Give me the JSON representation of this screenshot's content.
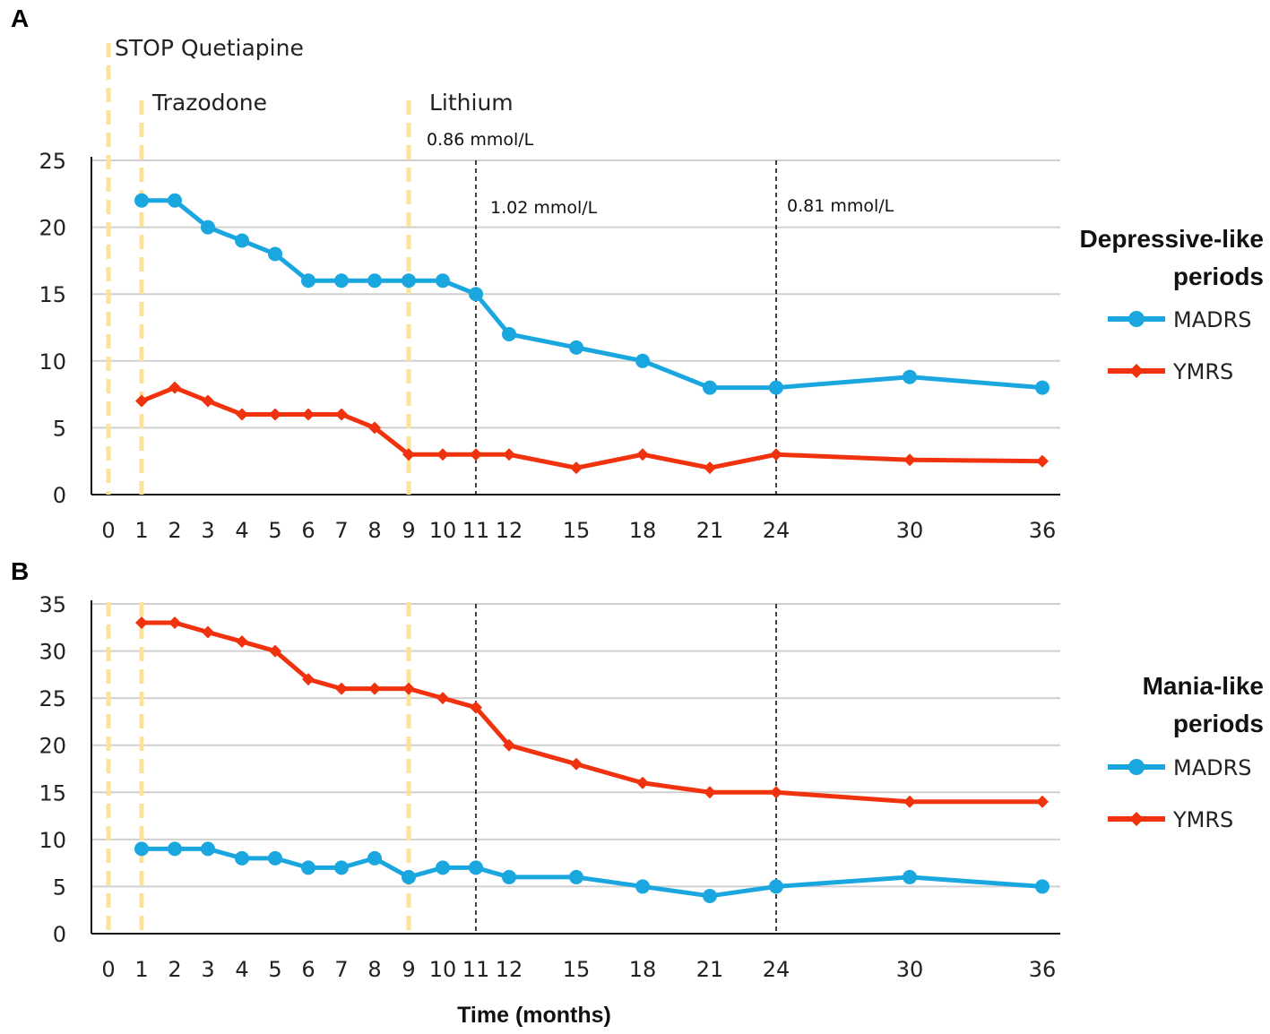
{
  "figure": {
    "x_positions": [
      "0",
      "1",
      "2",
      "3",
      "4",
      "5",
      "6",
      "7",
      "8",
      "9",
      "10",
      "11",
      "12",
      "15",
      "18",
      "21",
      "24",
      "30",
      "36"
    ],
    "xlabel": "Time (months)"
  },
  "colors": {
    "madrs": "#1aa7e0",
    "ymrs": "#f0330e",
    "treatment_line": "#fbe49a",
    "grid": "#d0d0d0",
    "lithium_line": "#111111"
  },
  "chart_data": [
    {
      "type": "line",
      "panel": "A",
      "title": "",
      "legend_title_lines": [
        "Depressive-like",
        "periods"
      ],
      "xlabel": "",
      "ylabel": "",
      "ylim": [
        0,
        25
      ],
      "yticks": [
        0,
        5,
        10,
        15,
        20,
        25
      ],
      "categories": [
        "0",
        "1",
        "2",
        "3",
        "4",
        "5",
        "6",
        "7",
        "8",
        "9",
        "10",
        "11",
        "12",
        "15",
        "18",
        "21",
        "24",
        "30",
        "36"
      ],
      "series": [
        {
          "name": "MADRS",
          "marker": "circle",
          "x": [
            "1",
            "2",
            "3",
            "4",
            "5",
            "6",
            "7",
            "8",
            "9",
            "10",
            "11",
            "12",
            "15",
            "18",
            "21",
            "24",
            "30",
            "36"
          ],
          "values": [
            22,
            22,
            20,
            19,
            18,
            16,
            16,
            16,
            16,
            16,
            15,
            12,
            11,
            10,
            8,
            8,
            8.8,
            8
          ]
        },
        {
          "name": "YMRS",
          "marker": "diamond",
          "x": [
            "1",
            "2",
            "3",
            "4",
            "5",
            "6",
            "7",
            "8",
            "9",
            "10",
            "11",
            "12",
            "15",
            "18",
            "21",
            "24",
            "30",
            "36"
          ],
          "values": [
            7,
            8,
            7,
            6,
            6,
            6,
            6,
            5,
            3,
            3,
            3,
            3,
            2,
            3,
            2,
            3,
            2.6,
            2.5
          ]
        }
      ],
      "treatment_lines": [
        {
          "x": "0",
          "label": "STOP Quetiapine"
        },
        {
          "x": "1",
          "label": "Trazodone"
        },
        {
          "x": "9",
          "label": "Lithium"
        }
      ],
      "lithium_levels": [
        {
          "x": "9",
          "label": "0.86 mmol/L",
          "line": false
        },
        {
          "x": "11",
          "label": "1.02 mmol/L",
          "line": true
        },
        {
          "x": "24",
          "label": "0.81 mmol/L",
          "line": true
        }
      ]
    },
    {
      "type": "line",
      "panel": "B",
      "title": "",
      "legend_title_lines": [
        "Mania-like",
        "periods"
      ],
      "xlabel": "Time (months)",
      "ylabel": "",
      "ylim": [
        0,
        35
      ],
      "yticks": [
        0,
        5,
        10,
        15,
        20,
        25,
        30,
        35
      ],
      "categories": [
        "0",
        "1",
        "2",
        "3",
        "4",
        "5",
        "6",
        "7",
        "8",
        "9",
        "10",
        "11",
        "12",
        "15",
        "18",
        "21",
        "24",
        "30",
        "36"
      ],
      "series": [
        {
          "name": "MADRS",
          "marker": "circle",
          "x": [
            "1",
            "2",
            "3",
            "4",
            "5",
            "6",
            "7",
            "8",
            "9",
            "10",
            "11",
            "12",
            "15",
            "18",
            "21",
            "24",
            "30",
            "36"
          ],
          "values": [
            9,
            9,
            9,
            8,
            8,
            7,
            7,
            8,
            6,
            7,
            7,
            6,
            6,
            5,
            4,
            5,
            6,
            5
          ]
        },
        {
          "name": "YMRS",
          "marker": "diamond",
          "x": [
            "1",
            "2",
            "3",
            "4",
            "5",
            "6",
            "7",
            "8",
            "9",
            "10",
            "11",
            "12",
            "15",
            "18",
            "21",
            "24",
            "30",
            "36"
          ],
          "values": [
            33,
            33,
            32,
            31,
            30,
            27,
            26,
            26,
            26,
            25,
            24,
            20,
            18,
            16,
            15,
            15,
            14,
            14
          ]
        }
      ],
      "treatment_lines": [
        {
          "x": "0"
        },
        {
          "x": "1"
        },
        {
          "x": "9"
        }
      ],
      "lithium_levels": [
        {
          "x": "11",
          "line": true
        },
        {
          "x": "24",
          "line": true
        }
      ]
    }
  ]
}
